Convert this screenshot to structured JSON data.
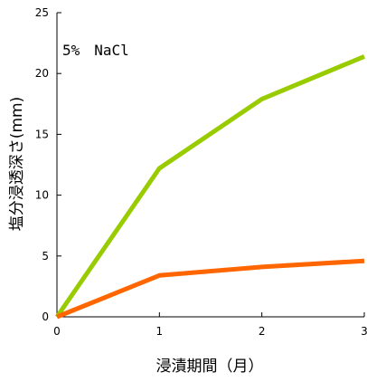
{
  "chart_data": {
    "type": "line",
    "title": "",
    "annotation": "5%　NaCl",
    "xlabel": "浸漬期間（月）",
    "ylabel": "塩分浸透深さ(mm)",
    "x": [
      0,
      1,
      2,
      3
    ],
    "xlim": [
      0,
      3
    ],
    "ylim": [
      0,
      25
    ],
    "x_ticks": [
      "0",
      "1",
      "2",
      "3"
    ],
    "y_ticks": [
      "0",
      "5",
      "10",
      "15",
      "20",
      "25"
    ],
    "grid": false,
    "legend": "none",
    "series": [
      {
        "values": [
          0,
          12.2,
          17.9,
          21.4
        ],
        "color": "#99cc00"
      },
      {
        "values": [
          0,
          3.4,
          4.1,
          4.6
        ],
        "color": "#ff6600"
      }
    ]
  }
}
